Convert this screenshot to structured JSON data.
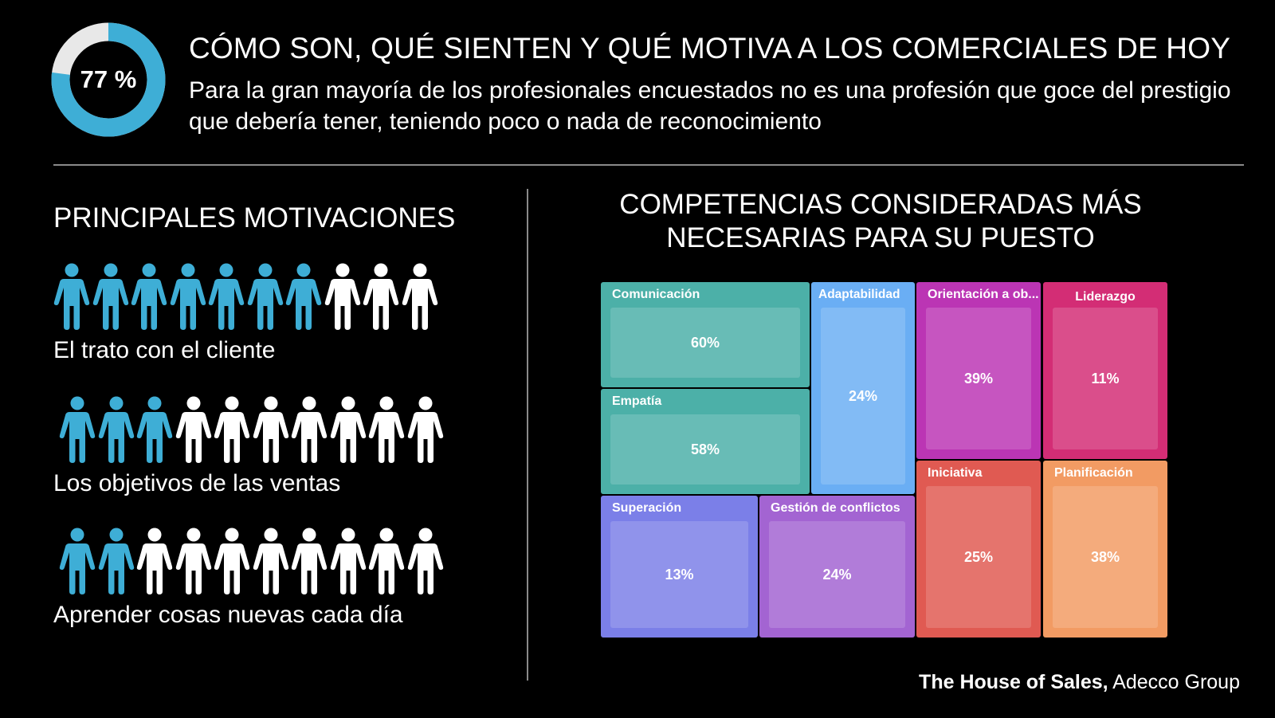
{
  "header": {
    "donut_percent": "77 %",
    "donut_value": 0.77,
    "title": "CÓMO SON, QUÉ SIENTEN Y QUÉ MOTIVA A LOS COMERCIALES DE HOY",
    "subtitle": "Para la gran mayoría de los profesionales encuestados no es una profesión que goce del prestigio que debería tener, teniendo poco o nada de reconocimiento"
  },
  "left_panel": {
    "title": "PRINCIPALES MOTIVACIONES",
    "motivations": [
      {
        "label": "El trato con el cliente",
        "filled": 7,
        "total": 10
      },
      {
        "label": "Los objetivos de las ventas",
        "filled": 3,
        "total": 10
      },
      {
        "label": "Aprender cosas nuevas cada día",
        "filled": 2,
        "total": 10
      }
    ]
  },
  "right_panel": {
    "title_line1": "COMPETENCIAS CONSIDERADAS MÁS",
    "title_line2": "NECESARIAS PARA SU PUESTO"
  },
  "source": {
    "bold": "The House of Sales,",
    "rest": " Adecco Group"
  },
  "colors": {
    "accent_blue": "#3eaed6",
    "donut_track": "#e8e8e8",
    "person_white": "#ffffff"
  },
  "chart_data": [
    {
      "type": "bar",
      "title": "PRINCIPALES MOTIVACIONES",
      "categories": [
        "El trato con el cliente",
        "Los objetivos de las ventas",
        "Aprender cosas nuevas cada día"
      ],
      "values": [
        7,
        3,
        2
      ],
      "ylim": [
        0,
        10
      ]
    },
    {
      "type": "treemap",
      "title": "COMPETENCIAS CONSIDERADAS MÁS NECESARIAS PARA SU PUESTO",
      "categories": [
        "Comunicación",
        "Empatía",
        "Adaptabilidad",
        "Orientación a ob...",
        "Liderazgo",
        "Superación",
        "Gestión de conflictos",
        "Iniciativa",
        "Planificación"
      ],
      "values": [
        60,
        58,
        24,
        39,
        11,
        13,
        24,
        25,
        38
      ],
      "value_labels": [
        "60%",
        "58%",
        "24%",
        "39%",
        "11%",
        "13%",
        "24%",
        "25%",
        "38%"
      ],
      "colors": [
        "#4cb0a8",
        "#4cb0a8",
        "#6aaef4",
        "#bb35b4",
        "#d32d75",
        "#7b7fe8",
        "#a364d2",
        "#e05a52",
        "#f29b63"
      ]
    }
  ]
}
